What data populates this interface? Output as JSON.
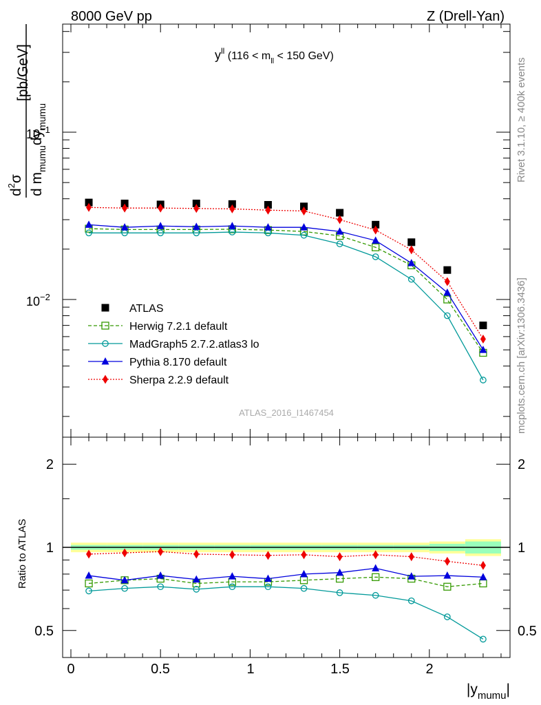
{
  "header": {
    "left": "8000 GeV pp",
    "right": "Z (Drell-Yan)"
  },
  "side_text": {
    "rivet": "Rivet 3.1.10, ≥ 400k events",
    "mcplots": "mcplots.cern.ch [arXiv:1306.3436]"
  },
  "main_panel": {
    "title_main": "y",
    "title_sup": "ll",
    "title_rest": " (116 < m",
    "title_sub": "ll",
    "title_end": " < 150 GeV)",
    "analysis_id": "ATLAS_2016_I1467454",
    "ylabel": "d²σ / d m_mumu dy_mumu [pb/GeV]",
    "ytick_labels": [
      "10−1",
      "10−2"
    ]
  },
  "ratio_panel": {
    "ylabel": "Ratio to ATLAS",
    "ytick_labels": [
      "2",
      "1",
      "0.5"
    ],
    "xtick_labels": [
      "0",
      "0.5",
      "1",
      "1.5",
      "2"
    ],
    "xlabel": "|y_mumu|"
  },
  "colors": {
    "atlas": "#000000",
    "herwig": "#339900",
    "madgraph": "#009999",
    "pythia": "#0000dd",
    "sherpa": "#ee0000",
    "band_yellow": "#ffff99",
    "band_green": "#99ffbb"
  },
  "chart_data": [
    {
      "type": "line",
      "scale_y": "log",
      "xlim": [
        -0.1,
        2.45
      ],
      "ylim": [
        0.0018,
        0.5
      ],
      "x": [
        0.1,
        0.3,
        0.5,
        0.7,
        0.9,
        1.1,
        1.3,
        1.5,
        1.7,
        1.9,
        2.1,
        2.3
      ],
      "series": [
        {
          "name": "ATLAS",
          "style": "data",
          "marker": "square-filled",
          "values": [
            0.038,
            0.0375,
            0.037,
            0.0375,
            0.0372,
            0.0368,
            0.036,
            0.033,
            0.028,
            0.022,
            0.015,
            0.007
          ]
        },
        {
          "name": "Herwig 7.2.1 default",
          "style": "dashed",
          "marker": "square-open",
          "values": [
            0.0265,
            0.0262,
            0.0262,
            0.0262,
            0.0263,
            0.026,
            0.0255,
            0.024,
            0.0205,
            0.016,
            0.01,
            0.0048
          ]
        },
        {
          "name": "MadGraph5 2.7.2.atlas3 lo",
          "style": "solid",
          "marker": "circle-open",
          "values": [
            0.025,
            0.025,
            0.025,
            0.025,
            0.0253,
            0.025,
            0.0242,
            0.0215,
            0.018,
            0.0132,
            0.008,
            0.0033
          ]
        },
        {
          "name": "Pythia 8.170 default",
          "style": "solid",
          "marker": "triangle-filled",
          "values": [
            0.028,
            0.027,
            0.0275,
            0.0272,
            0.0275,
            0.027,
            0.027,
            0.0255,
            0.0225,
            0.0165,
            0.011,
            0.005
          ]
        },
        {
          "name": "Sherpa 2.2.9 default",
          "style": "dotted",
          "marker": "diamond-filled",
          "values": [
            0.0355,
            0.0352,
            0.0352,
            0.035,
            0.0348,
            0.0342,
            0.0338,
            0.03,
            0.026,
            0.0198,
            0.0128,
            0.0058
          ]
        }
      ]
    },
    {
      "type": "line",
      "scale_y": "log",
      "xlim": [
        -0.1,
        2.45
      ],
      "ylim": [
        0.4,
        2.4
      ],
      "x": [
        0.1,
        0.3,
        0.5,
        0.7,
        0.9,
        1.1,
        1.3,
        1.5,
        1.7,
        1.9,
        2.1,
        2.3
      ],
      "xedges": [
        0.0,
        0.2,
        0.4,
        0.6,
        0.8,
        1.0,
        1.2,
        1.4,
        1.6,
        1.8,
        2.0,
        2.2,
        2.4
      ],
      "uncertainty_band": {
        "yellow": [
          0.04,
          0.04,
          0.04,
          0.04,
          0.04,
          0.04,
          0.04,
          0.04,
          0.04,
          0.04,
          0.05,
          0.07
        ],
        "green": [
          0.02,
          0.02,
          0.02,
          0.02,
          0.02,
          0.02,
          0.02,
          0.02,
          0.02,
          0.02,
          0.03,
          0.05
        ]
      },
      "series": [
        {
          "name": "Herwig 7.2.1 default",
          "style": "dashed",
          "marker": "square-open",
          "values": [
            0.74,
            0.76,
            0.77,
            0.74,
            0.75,
            0.75,
            0.76,
            0.77,
            0.78,
            0.77,
            0.72,
            0.74
          ]
        },
        {
          "name": "MadGraph5 2.7.2.atlas3 lo",
          "style": "solid",
          "marker": "circle-open",
          "values": [
            0.695,
            0.71,
            0.72,
            0.705,
            0.72,
            0.72,
            0.71,
            0.685,
            0.67,
            0.64,
            0.56,
            0.465
          ]
        },
        {
          "name": "Pythia 8.170 default",
          "style": "solid",
          "marker": "triangle-filled",
          "values": [
            0.79,
            0.76,
            0.79,
            0.765,
            0.785,
            0.77,
            0.8,
            0.81,
            0.84,
            0.785,
            0.79,
            0.78
          ]
        },
        {
          "name": "Sherpa 2.2.9 default",
          "style": "dotted",
          "marker": "diamond-filled",
          "values": [
            0.945,
            0.955,
            0.965,
            0.945,
            0.94,
            0.935,
            0.94,
            0.925,
            0.94,
            0.925,
            0.89,
            0.86
          ]
        }
      ]
    }
  ]
}
